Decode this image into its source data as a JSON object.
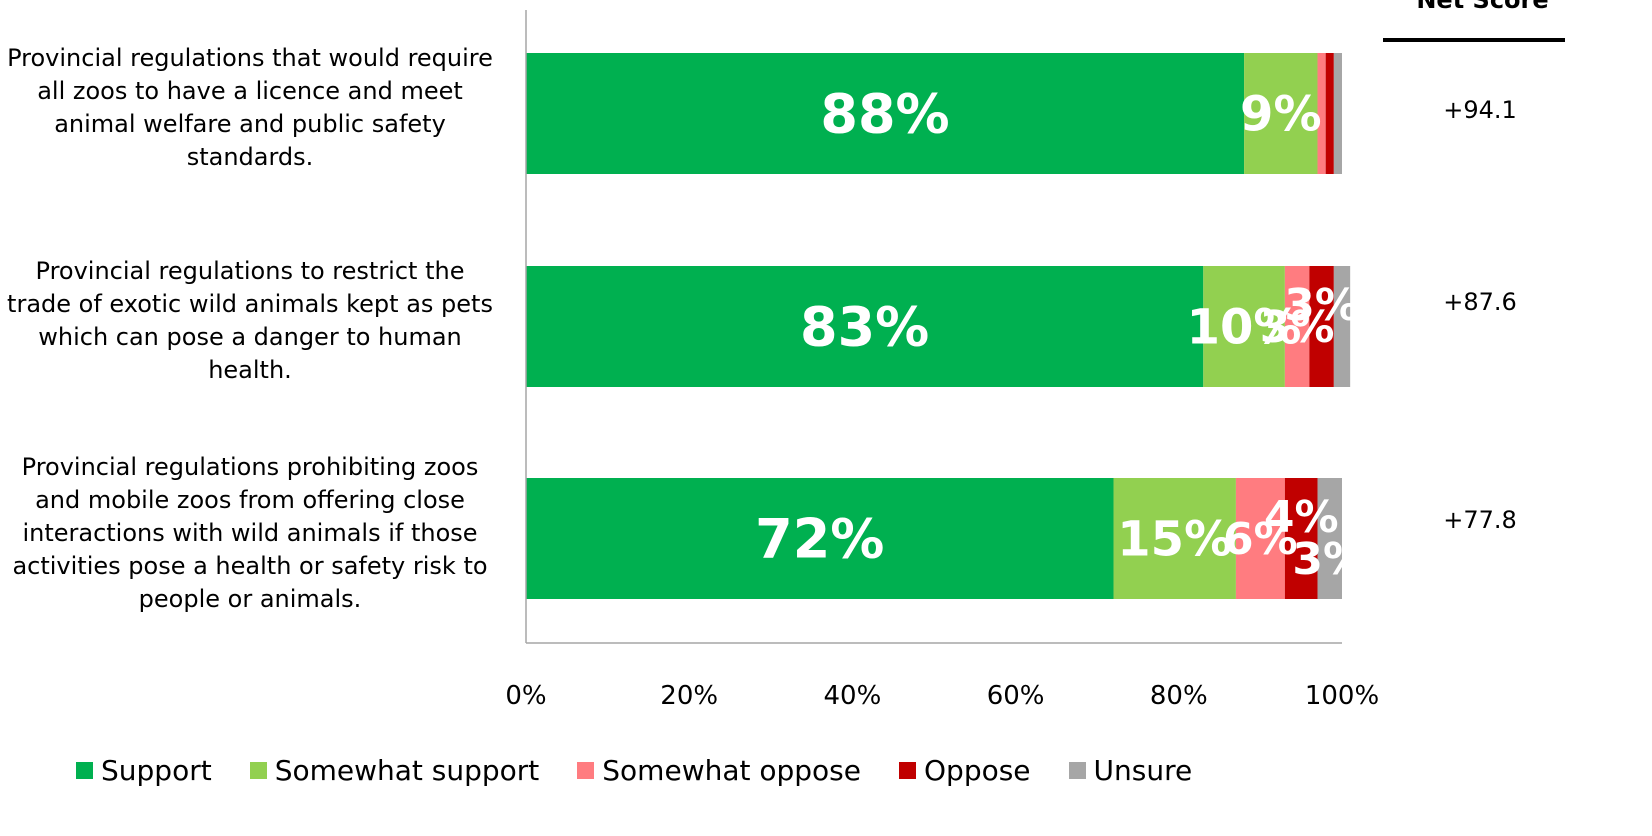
{
  "chart_data": {
    "type": "bar",
    "orientation": "horizontal",
    "stacked": true,
    "categories": [
      "Provincial regulations that would require all zoos to have a licence and meet animal welfare and public safety standards.",
      "Provincial regulations to restrict the trade of  exotic wild animals kept as pets which can pose a danger to human health.",
      "Provincial regulations prohibiting zoos and mobile zoos from offering close interactions with wild animals if those activities pose a health or safety risk to people or animals."
    ],
    "series": [
      {
        "name": "Support",
        "color": "#00B050",
        "values": [
          88,
          83,
          72
        ],
        "labels": [
          "88%",
          "83%",
          "72%"
        ]
      },
      {
        "name": "Somewhat support",
        "color": "#92D050",
        "values": [
          9,
          10,
          15
        ],
        "labels": [
          "9%",
          "10%",
          "15%"
        ]
      },
      {
        "name": "Somewhat oppose",
        "color": "#FF7C80",
        "values": [
          1,
          3,
          6
        ],
        "labels": [
          "",
          "3%",
          "6%"
        ]
      },
      {
        "name": "Oppose",
        "color": "#C00000",
        "values": [
          1,
          3,
          4
        ],
        "labels": [
          "",
          "3%",
          "4%"
        ]
      },
      {
        "name": "Unsure",
        "color": "#A6A6A6",
        "values": [
          1,
          2,
          3
        ],
        "labels": [
          "",
          "",
          "3%"
        ]
      }
    ],
    "xlim": [
      0,
      100
    ],
    "x_ticks": [
      "0%",
      "20%",
      "40%",
      "60%",
      "80%",
      "100%"
    ],
    "grid": false,
    "legend_position": "bottom",
    "net_score": {
      "header": "Net Score",
      "values": [
        "+94.1",
        "+87.6",
        "+77.8"
      ]
    }
  }
}
